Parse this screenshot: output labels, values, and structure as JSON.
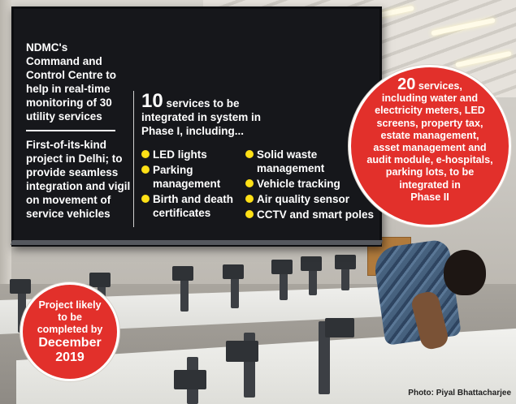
{
  "screen": {
    "headline": [
      "NDMC's",
      "Command and",
      "Control Centre to",
      "help in real-time",
      "monitoring of 30",
      "utility services"
    ],
    "subtext": [
      "First-of-its-kind",
      "project in Delhi; to",
      "provide seamless",
      "integration and vigil",
      "on movement of",
      "service vehicles"
    ],
    "phase1_number": "10",
    "phase1_heading_rest": "services to be",
    "phase1_heading_lines": [
      "integrated in system in",
      "Phase I, including..."
    ],
    "phase1_left": [
      "LED lights",
      "Parking management",
      "Birth and death certificates"
    ],
    "phase1_right": [
      "Solid waste management",
      "Vehicle tracking",
      "Air quality sensor",
      "CCTV and smart poles"
    ],
    "bullet_color": "#ffe016"
  },
  "phase2": {
    "number": "20",
    "first_word": "services,",
    "lines": [
      "including water and",
      "electricity meters, LED",
      "screens, property tax,",
      "estate management,",
      "asset management and",
      "audit module, e-hospitals,",
      "parking lots, to be",
      "integrated in",
      "Phase II"
    ],
    "color": "#e2302b"
  },
  "completion": {
    "lines": [
      "Project likely",
      "to be",
      "completed by"
    ],
    "month": "December",
    "year": "2019",
    "color": "#e2302b"
  },
  "credit": {
    "label": "Photo:",
    "name": "Piyal Bhattacharjee"
  }
}
